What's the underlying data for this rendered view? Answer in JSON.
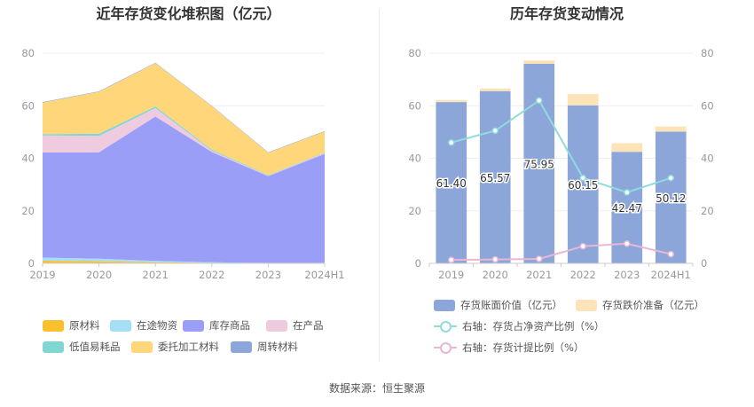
{
  "source_text": "数据来源：恒生聚源",
  "chart_data": [
    {
      "type": "area",
      "stacked": true,
      "title": "近年存货变化堆积图（亿元）",
      "categories": [
        "2019",
        "2020",
        "2021",
        "2022",
        "2023",
        "2024H1"
      ],
      "ylim": [
        0,
        80
      ],
      "yticks": [
        "0",
        "20",
        "40",
        "60",
        "80"
      ],
      "grid": true,
      "legend_position": "bottom",
      "series": [
        {
          "name": "原材料",
          "color": "#fbc02d",
          "values": [
            1.0,
            0.8,
            0.4,
            0.2,
            0.1,
            0.1
          ]
        },
        {
          "name": "在途物资",
          "color": "#a6def5",
          "values": [
            1.2,
            1.0,
            0.5,
            0.2,
            0.1,
            0.1
          ]
        },
        {
          "name": "库存商品",
          "color": "#9a9ef7",
          "values": [
            40.0,
            40.5,
            55.0,
            42.0,
            33.0,
            41.5
          ]
        },
        {
          "name": "在产品",
          "color": "#efcbe0",
          "values": [
            6.5,
            6.2,
            3.2,
            0.5,
            0.2,
            0.3
          ]
        },
        {
          "name": "低值易耗品",
          "color": "#80d6d3",
          "values": [
            0.5,
            0.8,
            0.6,
            0.4,
            0.2,
            0.2
          ]
        },
        {
          "name": "委托加工材料",
          "color": "#ffd77a",
          "values": [
            12.0,
            16.0,
            16.5,
            16.5,
            8.5,
            8.0
          ]
        },
        {
          "name": "周转材料",
          "color": "#8ca6d9",
          "values": [
            0.2,
            0.2,
            0.2,
            0.2,
            0.2,
            0.2
          ]
        }
      ]
    },
    {
      "type": "bar",
      "stacked": true,
      "title": "历年存货变动情况",
      "categories": [
        "2019",
        "2020",
        "2021",
        "2022",
        "2023",
        "2024H1"
      ],
      "ylim": [
        0,
        80
      ],
      "yticks": [
        "0",
        "20",
        "40",
        "60",
        "80"
      ],
      "y2lim": [
        0,
        80
      ],
      "y2ticks": [
        "0",
        "20",
        "40",
        "60",
        "80"
      ],
      "grid": true,
      "legend_position": "bottom",
      "series": [
        {
          "name": "存货账面价值（亿元）",
          "color": "#8ca6d9",
          "axis": "left",
          "values": [
            61.4,
            65.57,
            75.95,
            60.15,
            42.47,
            50.12
          ],
          "labels": [
            "61.40",
            "65.57",
            "75.95",
            "60.15",
            "42.47",
            "50.12"
          ]
        },
        {
          "name": "存货跌价准备（亿元）",
          "color": "#fde4b8",
          "axis": "left",
          "values": [
            0.8,
            1.0,
            1.3,
            4.3,
            3.3,
            2.0
          ]
        }
      ],
      "lines": [
        {
          "name": "右轴：存货占净资产比例（%）",
          "color": "#8edcdc",
          "axis": "right",
          "values": [
            46.0,
            50.5,
            62.0,
            32.5,
            27.0,
            32.5
          ]
        },
        {
          "name": "右轴：存货计提比例（%）",
          "color": "#e9b7d6",
          "axis": "right",
          "values": [
            1.3,
            1.5,
            1.7,
            6.5,
            7.5,
            3.5
          ]
        }
      ]
    }
  ]
}
